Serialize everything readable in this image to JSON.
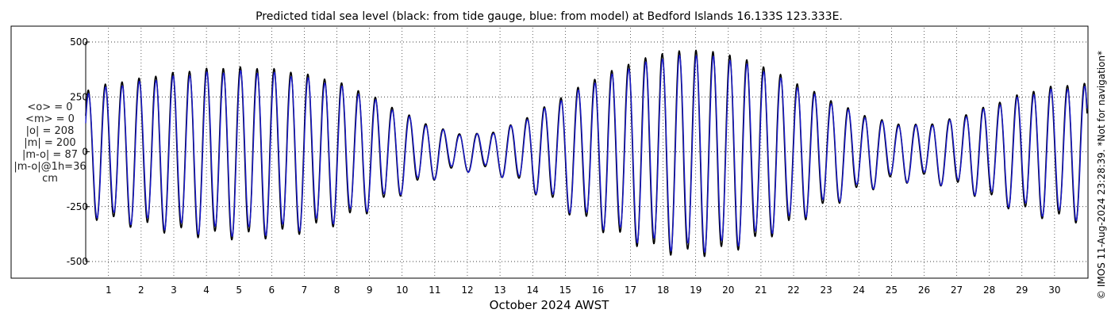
{
  "chart_data": {
    "type": "line",
    "title": "Predicted tidal sea level (black: from tide gauge, blue: from model) at Bedford Islands 16.133S 123.333E.",
    "xlabel": "October 2024 AWST",
    "ylabel": "",
    "x_ticks": [
      "1",
      "2",
      "3",
      "4",
      "5",
      "6",
      "7",
      "8",
      "9",
      "10",
      "11",
      "12",
      "13",
      "14",
      "15",
      "16",
      "17",
      "18",
      "19",
      "20",
      "21",
      "22",
      "23",
      "24",
      "25",
      "26",
      "27",
      "28",
      "29",
      "30"
    ],
    "y_ticks": [
      500,
      250,
      0,
      -250,
      -500
    ],
    "xlim_days": [
      0.3,
      31.0
    ],
    "ylim": [
      -500,
      500
    ],
    "units": "cm",
    "grid": true,
    "series": [
      {
        "name": "black: from tide gauge",
        "color": "#000000"
      },
      {
        "name": "blue: from model",
        "color": "#1a1acc"
      }
    ],
    "envelope_peak_cm_by_day": [
      [
        0.3,
        280
      ],
      [
        1,
        310
      ],
      [
        2,
        335
      ],
      [
        3,
        360
      ],
      [
        4,
        378
      ],
      [
        5,
        385
      ],
      [
        6,
        378
      ],
      [
        7,
        355
      ],
      [
        8,
        320
      ],
      [
        9,
        260
      ],
      [
        10,
        180
      ],
      [
        11,
        110
      ],
      [
        12,
        75
      ],
      [
        13,
        95
      ],
      [
        14,
        170
      ],
      [
        15,
        260
      ],
      [
        16,
        340
      ],
      [
        17,
        405
      ],
      [
        18,
        450
      ],
      [
        19,
        465
      ],
      [
        20,
        445
      ],
      [
        21,
        395
      ],
      [
        22,
        320
      ],
      [
        23,
        245
      ],
      [
        24,
        175
      ],
      [
        25,
        130
      ],
      [
        26,
        120
      ],
      [
        27,
        155
      ],
      [
        28,
        210
      ],
      [
        29,
        265
      ],
      [
        30,
        300
      ],
      [
        31,
        310
      ]
    ],
    "stats": {
      "mean_obs": "<o> = 0",
      "mean_model": "<m> = 0",
      "abs_obs": "|o| = 208",
      "abs_model": "|m| = 200",
      "abs_diff": "|m-o| = 87",
      "abs_diff_1h": "|m-o|@1h=36",
      "units_label": "cm"
    },
    "side_note": "© IMOS 11-Aug-2024 23:28:39. *Not for navigation*"
  }
}
